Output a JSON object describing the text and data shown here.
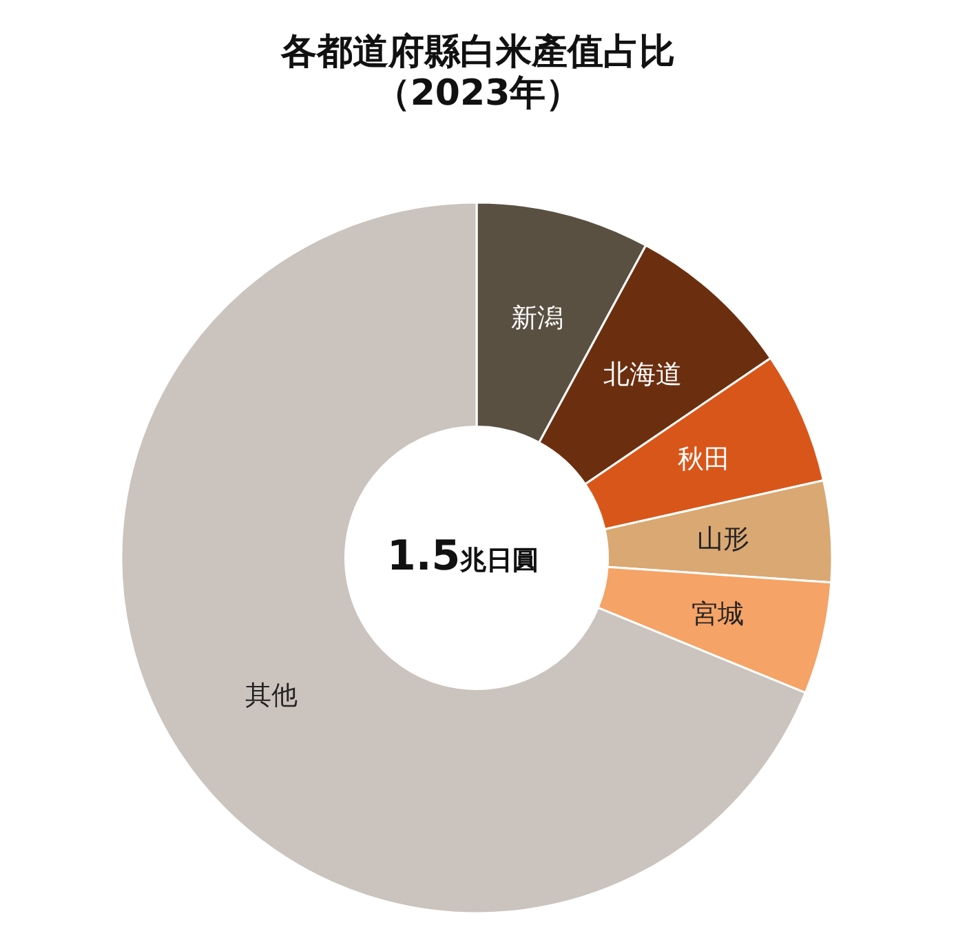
{
  "chart_data": {
    "type": "donut",
    "title": "各都道府縣白米產值占比",
    "subtitle": "（2023年）",
    "categories": [
      "新潟",
      "北海道",
      "秋田",
      "山形",
      "宮城",
      "其他"
    ],
    "values": [
      7.9,
      7.6,
      6.0,
      4.6,
      5.1,
      68.8
    ],
    "colors": [
      "#5a5042",
      "#6b2f10",
      "#d9561a",
      "#d9a873",
      "#f5a366",
      "#cbc3bd"
    ],
    "annotations": [
      "1.5兆日圓"
    ],
    "legend": false
  }
}
